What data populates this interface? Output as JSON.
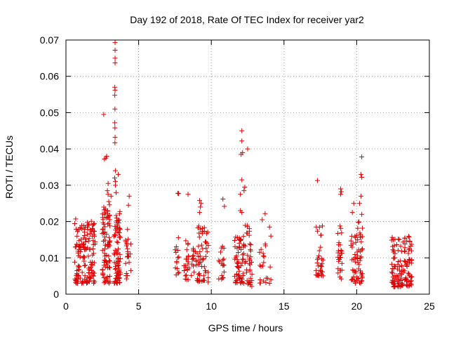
{
  "chart_data": {
    "type": "scatter",
    "title": "Day 192 of 2018, Rate Of TEC Index for receiver yar2",
    "xlabel": "GPS time / hours",
    "ylabel": "ROTI / TECUs",
    "xlim": [
      0,
      25
    ],
    "ylim": [
      0,
      0.07
    ],
    "grid": true,
    "marker": "+",
    "color": "#dd0000",
    "xticks": [
      0,
      5,
      10,
      15,
      20,
      25
    ],
    "yticks": [
      0,
      0.01,
      0.02,
      0.03,
      0.04,
      0.05,
      0.06,
      0.07
    ],
    "xtick_labels": [
      "0",
      "5",
      "10",
      "15",
      "20",
      "25"
    ],
    "ytick_labels": [
      "0",
      "0.01",
      "0.02",
      "0.03",
      "0.04",
      "0.05",
      "0.06",
      "0.07"
    ],
    "clusters": [
      {
        "x_range": [
          0.6,
          2.0
        ],
        "y_range": [
          0.003,
          0.021
        ],
        "n": 150,
        "seed": 11
      },
      {
        "x_range": [
          2.5,
          3.05
        ],
        "y_range": [
          0.003,
          0.025
        ],
        "n": 80,
        "seed": 12
      },
      {
        "x_range": [
          3.3,
          3.75
        ],
        "y_range": [
          0.003,
          0.023
        ],
        "n": 80,
        "seed": 13
      },
      {
        "x_range": [
          4.1,
          4.5
        ],
        "y_range": [
          0.004,
          0.018
        ],
        "n": 22,
        "seed": 14
      },
      {
        "x_range": [
          7.5,
          7.8
        ],
        "y_range": [
          0.005,
          0.016
        ],
        "n": 14,
        "seed": 15
      },
      {
        "x_range": [
          8.1,
          8.5
        ],
        "y_range": [
          0.004,
          0.018
        ],
        "n": 22,
        "seed": 16
      },
      {
        "x_range": [
          8.6,
          9.0
        ],
        "y_range": [
          0.005,
          0.014
        ],
        "n": 16,
        "seed": 17
      },
      {
        "x_range": [
          9.0,
          9.8
        ],
        "y_range": [
          0.003,
          0.02
        ],
        "n": 55,
        "seed": 18
      },
      {
        "x_range": [
          10.5,
          10.9
        ],
        "y_range": [
          0.004,
          0.014
        ],
        "n": 18,
        "seed": 19
      },
      {
        "x_range": [
          11.6,
          12.3
        ],
        "y_range": [
          0.003,
          0.016
        ],
        "n": 60,
        "seed": 20
      },
      {
        "x_range": [
          12.3,
          12.8
        ],
        "y_range": [
          0.002,
          0.019
        ],
        "n": 38,
        "seed": 21
      },
      {
        "x_range": [
          13.3,
          13.9
        ],
        "y_range": [
          0.003,
          0.014
        ],
        "n": 18,
        "seed": 22
      },
      {
        "x_range": [
          17.2,
          17.7
        ],
        "y_range": [
          0.005,
          0.02
        ],
        "n": 32,
        "seed": 23
      },
      {
        "x_range": [
          18.7,
          19.0
        ],
        "y_range": [
          0.004,
          0.019
        ],
        "n": 28,
        "seed": 24
      },
      {
        "x_range": [
          19.6,
          19.95
        ],
        "y_range": [
          0.003,
          0.016
        ],
        "n": 24,
        "seed": 25
      },
      {
        "x_range": [
          20.0,
          20.4
        ],
        "y_range": [
          0.003,
          0.02
        ],
        "n": 40,
        "seed": 26
      },
      {
        "x_range": [
          22.4,
          23.8
        ],
        "y_range": [
          0.002,
          0.016
        ],
        "n": 130,
        "seed": 27
      }
    ],
    "points": [
      [
        2.6,
        0.0495
      ],
      [
        3.38,
        0.0693
      ],
      [
        3.38,
        0.0672
      ],
      [
        3.38,
        0.065
      ],
      [
        3.38,
        0.0637
      ],
      [
        3.36,
        0.057
      ],
      [
        3.38,
        0.0562
      ],
      [
        3.36,
        0.0548
      ],
      [
        3.37,
        0.051
      ],
      [
        3.36,
        0.0472
      ],
      [
        3.37,
        0.0458
      ],
      [
        3.38,
        0.0432
      ],
      [
        3.37,
        0.0417
      ],
      [
        2.65,
        0.0372
      ],
      [
        2.75,
        0.0375
      ],
      [
        2.8,
        0.038
      ],
      [
        3.6,
        0.033
      ],
      [
        3.4,
        0.034
      ],
      [
        3.35,
        0.032
      ],
      [
        3.4,
        0.031
      ],
      [
        3.4,
        0.03
      ],
      [
        2.9,
        0.0305
      ],
      [
        2.85,
        0.0285
      ],
      [
        2.9,
        0.0275
      ],
      [
        3.1,
        0.027
      ],
      [
        2.95,
        0.0255
      ],
      [
        4.35,
        0.027
      ],
      [
        4.3,
        0.0245
      ],
      [
        3.45,
        0.028
      ],
      [
        7.7,
        0.0278
      ],
      [
        7.75,
        0.0277
      ],
      [
        8.4,
        0.0275
      ],
      [
        9.2,
        0.0258
      ],
      [
        9.3,
        0.025
      ],
      [
        9.25,
        0.024
      ],
      [
        10.8,
        0.0262
      ],
      [
        10.9,
        0.0242
      ],
      [
        9.2,
        0.0225
      ],
      [
        12.1,
        0.045
      ],
      [
        12.1,
        0.0422
      ],
      [
        12.15,
        0.039
      ],
      [
        12.05,
        0.0385
      ],
      [
        12.5,
        0.04
      ],
      [
        12.1,
        0.0315
      ],
      [
        12.3,
        0.0295
      ],
      [
        12.25,
        0.0285
      ],
      [
        12.0,
        0.0275
      ],
      [
        12.0,
        0.023
      ],
      [
        12.1,
        0.0225
      ],
      [
        13.7,
        0.0222
      ],
      [
        13.5,
        0.0205
      ],
      [
        14.0,
        0.0185
      ],
      [
        14.1,
        0.016
      ],
      [
        14.05,
        0.0075
      ],
      [
        14.1,
        0.004
      ],
      [
        14.0,
        0.003
      ],
      [
        17.3,
        0.0313
      ],
      [
        18.9,
        0.029
      ],
      [
        18.95,
        0.0282
      ],
      [
        18.9,
        0.0275
      ],
      [
        20.35,
        0.0378
      ],
      [
        20.3,
        0.033
      ],
      [
        20.35,
        0.0322
      ],
      [
        20.3,
        0.027
      ],
      [
        20.2,
        0.025
      ],
      [
        20.35,
        0.022
      ],
      [
        19.8,
        0.025
      ],
      [
        19.7,
        0.0225
      ]
    ]
  }
}
